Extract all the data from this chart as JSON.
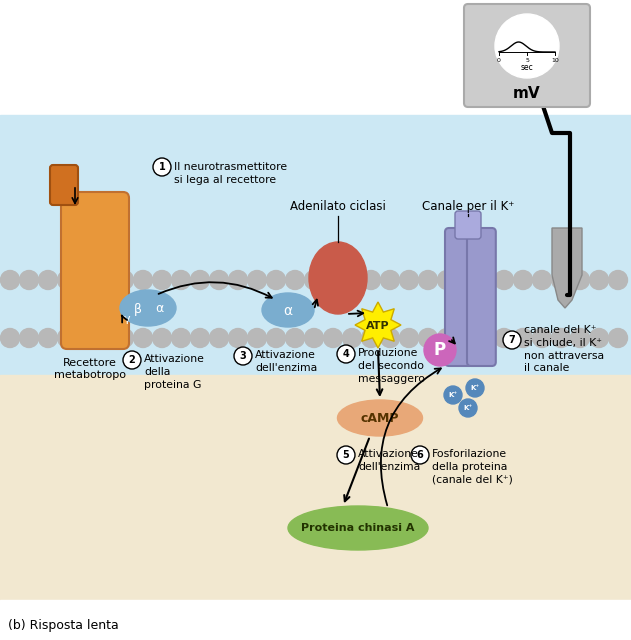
{
  "fig_width": 6.31,
  "fig_height": 6.4,
  "caption": "(b) Risposta lenta",
  "label1": "Il neurotrasmettitore\nsi lega al recettore",
  "label2": "Attivazione\ndella\nproteina G",
  "label3": "Attivazione\ndell'enzima",
  "label4": "Produzione\ndel secondo\nmessaggero",
  "label5": "Attivazione\ndell'enzima",
  "label6": "Fosforilazione\ndella proteina\n(canale del K⁺)",
  "label7": "canale del K⁺\nsi chiude, il K⁺\nnon attraversa\nil canale",
  "label_adenilatociclasi": "Adenilato ciclasi",
  "label_canale": "Canale per il K⁺",
  "label_recettore": "Recettore\nmetabotropo",
  "label_camp": "cAMP",
  "label_atp": "ATP",
  "label_proteinachinasi": "Proteina chinasi A",
  "label_mv": "mV",
  "label_sec": "sec",
  "blue_bg": "#cce8f4",
  "beige_bg": "#f2e8d0",
  "meter_gray": "#cccccc",
  "receptor_color": "#e8973a",
  "gprotein_color": "#7aadcf",
  "enzyme_color": "#c95b4a",
  "channel_color": "#9999cc",
  "atp_color": "#ffee00",
  "camp_color": "#e8a878",
  "pka_color": "#88bb55",
  "p_color": "#cc66bb",
  "bead_color": "#b8b8b8"
}
